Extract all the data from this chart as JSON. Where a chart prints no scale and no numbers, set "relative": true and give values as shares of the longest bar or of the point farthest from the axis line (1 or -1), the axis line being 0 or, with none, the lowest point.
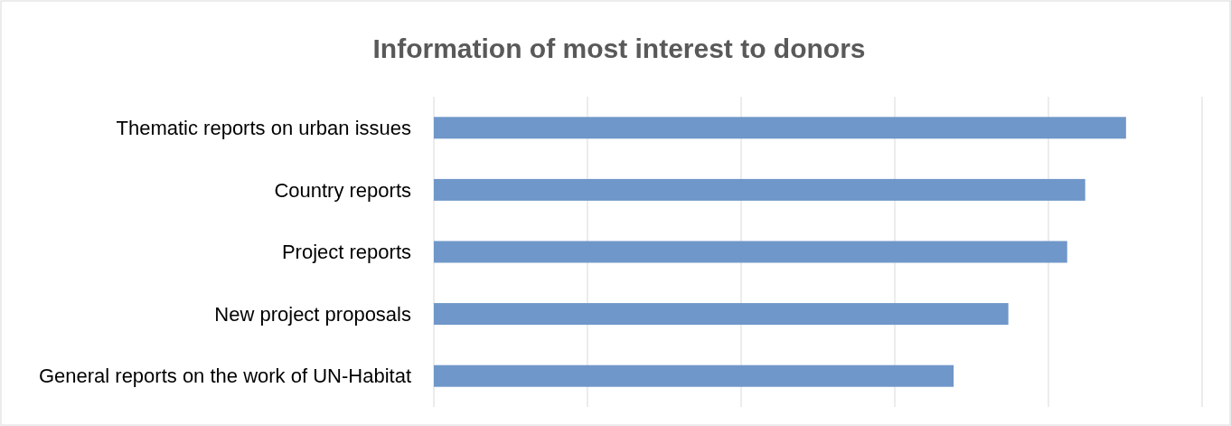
{
  "chart_data": {
    "type": "bar",
    "orientation": "horizontal",
    "relative": true,
    "title": "Information of most interest to donors",
    "categories": [
      "Thematic reports on urban issues",
      "Country reports",
      "Project reports",
      "New project proposals",
      "General reports on the work of UN-Habitat"
    ],
    "values": [
      1,
      0.941,
      0.915,
      0.83,
      0.751
    ],
    "color": "#6f97c9",
    "grid": "x"
  }
}
